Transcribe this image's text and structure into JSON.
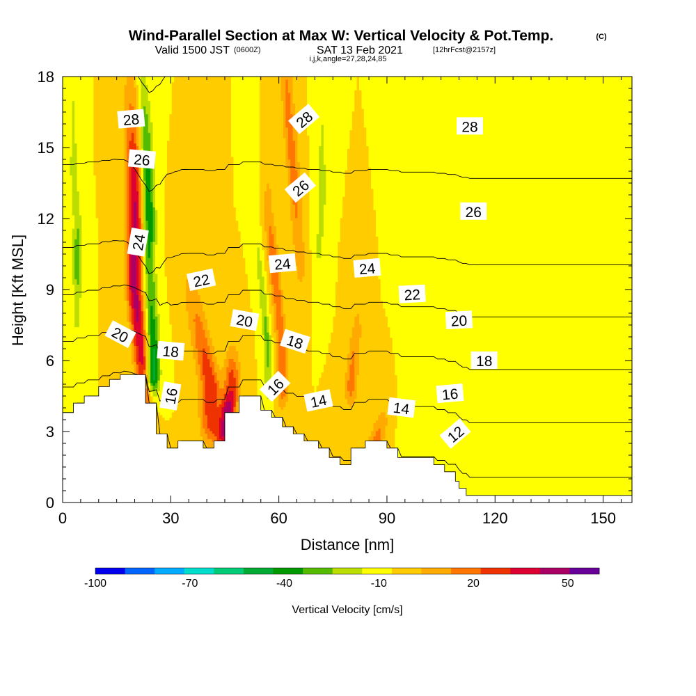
{
  "header": {
    "title": "Wind-Parallel Section at Max W: Vertical Velocity & Pot.Temp.",
    "title_suffix": "(C)",
    "valid_prefix": "Valid 1500 JST",
    "valid_utc": "(0600Z)",
    "valid_date": "SAT 13 Feb 2021",
    "forecast": "[12hrFcst@2157z]",
    "indices": "i,j,k,angle=27,28,24,85"
  },
  "chart_data": {
    "type": "heatmap",
    "title": "Wind-Parallel Section at Max W: Vertical Velocity & Pot.Temp.",
    "xlabel": "Distance [nm]",
    "ylabel": "Height [Kft MSL]",
    "xlim": [
      0,
      158
    ],
    "ylim": [
      0,
      18
    ],
    "x_ticks": [
      0,
      30,
      60,
      90,
      120,
      150
    ],
    "y_ticks": [
      0,
      3,
      6,
      9,
      12,
      15,
      18
    ],
    "x_ticklabels": [
      "0",
      "30",
      "60",
      "90",
      "120",
      "150"
    ],
    "y_ticklabels": [
      "0",
      "3",
      "6",
      "9",
      "12",
      "15",
      "18"
    ],
    "colorbar": {
      "label": "Vertical Velocity [cm/s]",
      "ticklabels": [
        "-100",
        "-70",
        "-40",
        "-10",
        "20",
        "50"
      ],
      "tick_values": [
        -100,
        -70,
        -40,
        -10,
        20,
        50
      ],
      "levels": [
        -100,
        -90,
        -80,
        -70,
        -60,
        -50,
        -40,
        -30,
        -20,
        -10,
        0,
        10,
        20,
        30,
        40,
        50,
        60
      ],
      "colors": [
        "#0000ee",
        "#0066ff",
        "#00aaff",
        "#00ddcc",
        "#00cc77",
        "#00aa33",
        "#009900",
        "#55bb00",
        "#bbdd00",
        "#ffff00",
        "#ffcc00",
        "#ffaa00",
        "#ff7700",
        "#ee3300",
        "#dd0033",
        "#aa0066",
        "#660099"
      ]
    },
    "background_velocity": 0,
    "terrain": {
      "x": [
        0,
        3,
        3,
        6,
        6,
        10,
        10,
        13,
        13,
        16,
        16,
        19,
        19,
        23,
        23,
        26,
        26,
        29,
        29,
        32,
        32,
        39,
        39,
        42,
        42,
        45,
        45,
        49,
        49,
        52,
        52,
        55,
        55,
        58,
        58,
        61,
        61,
        64,
        64,
        67,
        67,
        71,
        71,
        74,
        74,
        77,
        77,
        80,
        80,
        84,
        84,
        87,
        87,
        90,
        90,
        93,
        93,
        97,
        97,
        100,
        100,
        103,
        103,
        106,
        106,
        109,
        109,
        110,
        110,
        112,
        112,
        115,
        115,
        119,
        119,
        158
      ],
      "y": [
        3.8,
        3.8,
        4.2,
        4.2,
        4.5,
        4.5,
        4.9,
        4.9,
        5.2,
        5.2,
        5.4,
        5.4,
        5.4,
        5.4,
        4.2,
        4.2,
        2.9,
        2.9,
        2.3,
        2.3,
        2.6,
        2.6,
        2.3,
        2.3,
        2.6,
        2.6,
        3.8,
        3.8,
        4.5,
        4.5,
        4.5,
        4.5,
        3.9,
        3.9,
        3.6,
        3.6,
        3.2,
        3.2,
        2.9,
        2.9,
        2.6,
        2.6,
        2.3,
        2.3,
        1.9,
        1.9,
        1.6,
        1.6,
        2.3,
        2.3,
        2.6,
        2.6,
        2.6,
        2.6,
        2.3,
        2.3,
        1.9,
        1.9,
        1.9,
        1.9,
        1.9,
        1.9,
        1.6,
        1.6,
        1.3,
        1.3,
        0.9,
        0.9,
        0.6,
        0.6,
        0.3,
        0.3,
        0.3,
        0.3,
        0.3,
        0.3
      ]
    },
    "velocity_features": [
      {
        "x": [
          23,
          22,
          21,
          20,
          20,
          20,
          19.5,
          19
        ],
        "y": [
          4.5,
          6,
          7.5,
          9,
          11,
          13,
          15,
          17
        ],
        "w": [
          35,
          45,
          50,
          55,
          55,
          50,
          35,
          20
        ],
        "halfwidth": 2.2
      },
      {
        "x": [
          25,
          25,
          24.5,
          24,
          24,
          23.5,
          23,
          22
        ],
        "y": [
          5.5,
          7,
          8.5,
          10,
          12,
          14,
          16,
          18
        ],
        "w": [
          -55,
          -40,
          -30,
          -30,
          -40,
          -35,
          -25,
          -15
        ],
        "halfwidth": 1.8
      },
      {
        "x": [
          4,
          4,
          4,
          3,
          3
        ],
        "y": [
          8,
          10,
          12,
          14,
          17
        ],
        "w": [
          -15,
          -25,
          -20,
          -15,
          -10
        ],
        "halfwidth": 1.2
      },
      {
        "x": [
          41,
          41,
          39,
          37,
          35,
          33
        ],
        "y": [
          3.5,
          5,
          6.5,
          8,
          9.5,
          11
        ],
        "w": [
          35,
          40,
          30,
          20,
          10,
          5
        ],
        "halfwidth": 2.8
      },
      {
        "x": [
          45,
          46,
          47
        ],
        "y": [
          3,
          4,
          5
        ],
        "w": [
          50,
          55,
          35
        ],
        "halfwidth": 2.2
      },
      {
        "x": [
          57,
          57,
          56,
          55,
          54,
          53
        ],
        "y": [
          5,
          6.5,
          8,
          9.5,
          11,
          12.5
        ],
        "w": [
          -15,
          -25,
          -20,
          -15,
          -10,
          -5
        ],
        "halfwidth": 1.1
      },
      {
        "x": [
          61,
          61,
          60,
          59,
          58,
          57
        ],
        "y": [
          5,
          6.5,
          8,
          9.5,
          11,
          12.5
        ],
        "w": [
          30,
          30,
          25,
          28,
          25,
          15
        ],
        "halfwidth": 1.6
      },
      {
        "x": [
          66,
          65,
          64,
          63,
          62
        ],
        "y": [
          10,
          12,
          14,
          16,
          18
        ],
        "w": [
          15,
          20,
          25,
          25,
          20
        ],
        "halfwidth": 1.8
      },
      {
        "x": [
          71,
          72,
          72
        ],
        "y": [
          10,
          13,
          16
        ],
        "w": [
          -10,
          -15,
          -10
        ],
        "halfwidth": 1.5
      },
      {
        "x": [
          80,
          81,
          82
        ],
        "y": [
          5,
          6.5,
          8
        ],
        "w": [
          25,
          20,
          10
        ],
        "halfwidth": 1.8
      },
      {
        "x": [
          87,
          88,
          89
        ],
        "y": [
          2.6,
          3.2,
          3.8
        ],
        "w": [
          25,
          20,
          10
        ],
        "halfwidth": 2.2
      },
      {
        "x": [
          98,
          98,
          98,
          98
        ],
        "y": [
          3,
          6,
          9,
          12
        ],
        "w": [
          -8,
          -8,
          -8,
          -8
        ],
        "halfwidth": 3
      }
    ],
    "contour_levels": [
      12,
      14,
      16,
      18,
      20,
      22,
      24,
      26,
      28
    ],
    "contour_labels": [
      {
        "text": "28",
        "x": 19,
        "y": 16.2,
        "angle": -5
      },
      {
        "text": "26",
        "x": 22,
        "y": 14.5,
        "angle": 5
      },
      {
        "text": "24",
        "x": 21,
        "y": 11.0,
        "angle": -80
      },
      {
        "text": "22",
        "x": 38.5,
        "y": 9.4,
        "angle": -12
      },
      {
        "text": "20",
        "x": 16,
        "y": 7.1,
        "angle": 28
      },
      {
        "text": "20",
        "x": 50.5,
        "y": 7.7,
        "angle": 10
      },
      {
        "text": "18",
        "x": 30,
        "y": 6.4,
        "angle": 5
      },
      {
        "text": "18",
        "x": 64.5,
        "y": 6.8,
        "angle": 18
      },
      {
        "text": "16",
        "x": 30,
        "y": 4.5,
        "angle": -80
      },
      {
        "text": "16",
        "x": 59,
        "y": 4.9,
        "angle": -45
      },
      {
        "text": "16",
        "x": 107.5,
        "y": 4.6,
        "angle": -5
      },
      {
        "text": "14",
        "x": 71,
        "y": 4.3,
        "angle": -12
      },
      {
        "text": "14",
        "x": 94,
        "y": 4.0,
        "angle": 7
      },
      {
        "text": "12",
        "x": 109,
        "y": 2.9,
        "angle": -40
      },
      {
        "text": "28",
        "x": 67,
        "y": 16.2,
        "angle": -40
      },
      {
        "text": "26",
        "x": 66,
        "y": 13.3,
        "angle": -40
      },
      {
        "text": "24",
        "x": 61,
        "y": 10.1,
        "angle": -5
      },
      {
        "text": "24",
        "x": 84.5,
        "y": 9.9,
        "angle": -5
      },
      {
        "text": "22",
        "x": 97,
        "y": 8.8,
        "angle": -3
      },
      {
        "text": "20",
        "x": 110,
        "y": 7.7,
        "angle": -3
      },
      {
        "text": "18",
        "x": 117,
        "y": 6.0,
        "angle": 0
      },
      {
        "text": "26",
        "x": 114,
        "y": 12.3,
        "angle": 0
      },
      {
        "text": "28",
        "x": 113,
        "y": 15.9,
        "angle": 0
      }
    ]
  }
}
